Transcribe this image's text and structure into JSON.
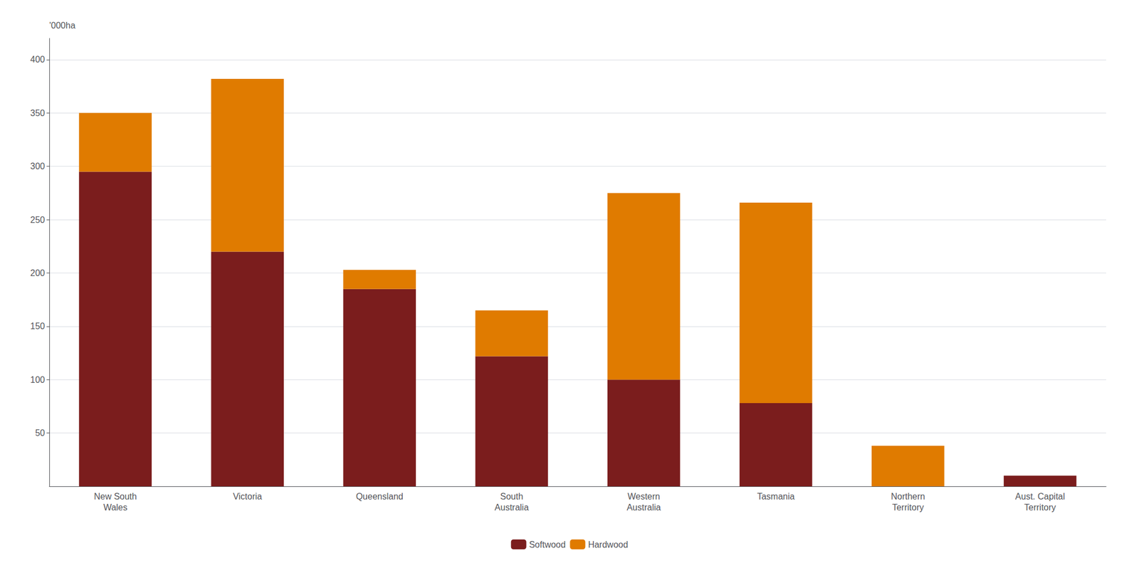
{
  "chart_data": {
    "type": "bar",
    "stacked": true,
    "categories": [
      "New South\nWales",
      "Victoria",
      "Queensland",
      "South\nAustralia",
      "Western\nAustralia",
      "Tasmania",
      "Northern\nTerritory",
      "Aust. Capital\nTerritory"
    ],
    "series": [
      {
        "name": "Softwood",
        "color": "#7B1D1D",
        "values": [
          295,
          220,
          185,
          122,
          100,
          78,
          0,
          10
        ]
      },
      {
        "name": "Hardwood",
        "color": "#E07B00",
        "values": [
          55,
          162,
          18,
          43,
          175,
          188,
          38,
          0
        ]
      }
    ],
    "ylabel": "'000ha",
    "ylim": [
      0,
      420
    ],
    "yticks": [
      50,
      100,
      150,
      200,
      250,
      300,
      350,
      400
    ],
    "grid": true,
    "legend": "bottom"
  }
}
